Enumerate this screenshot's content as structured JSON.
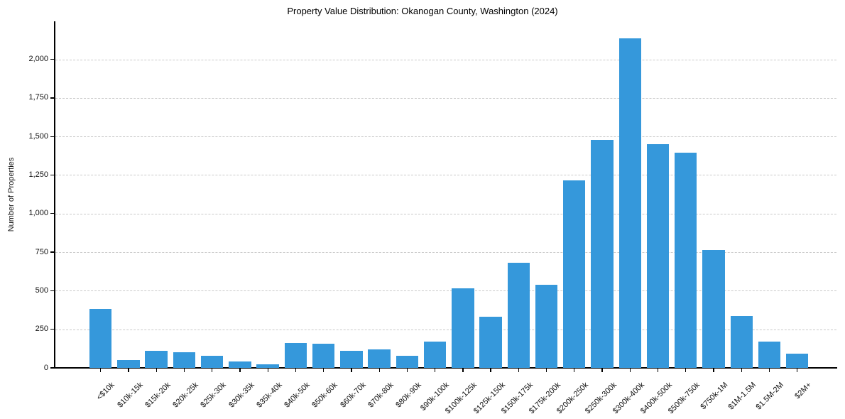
{
  "chart_data": {
    "type": "bar",
    "title": "Property Value Distribution: Okanogan County, Washington (2024)",
    "xlabel": "",
    "ylabel": "Number of Properties",
    "categories": [
      "<$10k",
      "$10k-15k",
      "$15k-20k",
      "$20k-25k",
      "$25k-30k",
      "$30k-35k",
      "$35k-40k",
      "$40k-50k",
      "$50k-60k",
      "$60k-70k",
      "$70k-80k",
      "$80k-90k",
      "$90k-100k",
      "$100k-125k",
      "$125k-150k",
      "$150k-175k",
      "$175k-200k",
      "$200k-250k",
      "$250k-300k",
      "$300k-400k",
      "$400k-500k",
      "$500k-750k",
      "$750k-1M",
      "$1M-1.5M",
      "$1.5M-2M",
      "$2M+"
    ],
    "values": [
      380,
      50,
      110,
      100,
      80,
      40,
      25,
      160,
      155,
      110,
      120,
      80,
      170,
      515,
      330,
      680,
      540,
      1215,
      1480,
      2135,
      1450,
      1395,
      765,
      335,
      170,
      90
    ],
    "yticks": [
      0,
      250,
      500,
      750,
      1000,
      1250,
      1500,
      1750,
      2000
    ],
    "ytick_labels": [
      "0",
      "250",
      "500",
      "750",
      "1,000",
      "1,250",
      "1,500",
      "1,750",
      "2,000"
    ],
    "ylim": [
      0,
      2242
    ],
    "grid": "horizontal-dashed",
    "legend": "none",
    "bar_color": "#3598db",
    "gridline_color": "#c9c9c9",
    "background_color": "#ffffff"
  }
}
